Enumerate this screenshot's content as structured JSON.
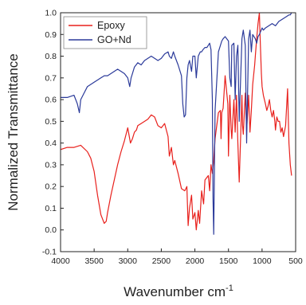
{
  "chart_data": {
    "type": "line",
    "title": "",
    "xlabel": "Wavenumber cm",
    "xlabel_superscript": "-1",
    "ylabel": "Normalized Transmittance",
    "xlim": [
      4000,
      500
    ],
    "ylim": [
      -0.1,
      1.0
    ],
    "x_reversed": true,
    "x_ticks": [
      4000,
      3500,
      3000,
      2500,
      2000,
      1500,
      1000,
      500
    ],
    "y_ticks": [
      -0.1,
      0.0,
      0.1,
      0.2,
      0.3,
      0.4,
      0.5,
      0.6,
      0.7,
      0.8,
      0.9,
      1.0
    ],
    "x_tick_labels": [
      "4000",
      "3500",
      "3000",
      "2500",
      "2000",
      "1500",
      "1000",
      "500"
    ],
    "y_tick_labels": [
      "-0.1",
      "0.0",
      "0.1",
      "0.2",
      "0.3",
      "0.4",
      "0.5",
      "0.6",
      "0.7",
      "0.8",
      "0.9",
      "1.0"
    ],
    "grid": false,
    "legend_position": "top-left",
    "series": [
      {
        "name": "Epoxy",
        "color": "#e8201c",
        "x": [
          4000,
          3900,
          3800,
          3700,
          3600,
          3550,
          3500,
          3450,
          3400,
          3350,
          3320,
          3300,
          3250,
          3200,
          3150,
          3100,
          3050,
          3000,
          2960,
          2930,
          2900,
          2870,
          2850,
          2800,
          2750,
          2700,
          2650,
          2600,
          2550,
          2500,
          2450,
          2400,
          2380,
          2350,
          2320,
          2300,
          2250,
          2200,
          2150,
          2120,
          2100,
          2080,
          2050,
          2030,
          2000,
          1980,
          1950,
          1930,
          1900,
          1870,
          1850,
          1800,
          1780,
          1760,
          1740,
          1720,
          1700,
          1650,
          1620,
          1610,
          1600,
          1580,
          1550,
          1510,
          1500,
          1480,
          1460,
          1450,
          1420,
          1400,
          1380,
          1360,
          1340,
          1300,
          1290,
          1280,
          1250,
          1230,
          1200,
          1180,
          1160,
          1140,
          1110,
          1100,
          1080,
          1060,
          1040,
          1030,
          1010,
          1000,
          980,
          950,
          930,
          910,
          890,
          870,
          850,
          830,
          810,
          800,
          780,
          760,
          740,
          720,
          700,
          680,
          650,
          620,
          600,
          580,
          560
        ],
        "y": [
          0.37,
          0.38,
          0.38,
          0.39,
          0.36,
          0.33,
          0.27,
          0.16,
          0.07,
          0.03,
          0.04,
          0.08,
          0.16,
          0.23,
          0.3,
          0.36,
          0.41,
          0.47,
          0.4,
          0.42,
          0.45,
          0.46,
          0.48,
          0.49,
          0.5,
          0.51,
          0.53,
          0.52,
          0.48,
          0.47,
          0.49,
          0.43,
          0.34,
          0.38,
          0.3,
          0.32,
          0.26,
          0.19,
          0.18,
          0.2,
          0.02,
          0.1,
          0.16,
          0.05,
          0.08,
          0.0,
          0.09,
          0.03,
          0.18,
          0.12,
          0.23,
          0.25,
          0.18,
          0.3,
          0.26,
          0.32,
          0.42,
          0.54,
          0.55,
          0.42,
          0.54,
          0.56,
          0.71,
          0.58,
          0.34,
          0.62,
          0.46,
          0.42,
          0.6,
          0.45,
          0.62,
          0.4,
          0.22,
          0.62,
          0.48,
          0.44,
          0.63,
          0.46,
          0.62,
          0.45,
          0.55,
          0.67,
          0.76,
          0.8,
          0.88,
          0.95,
          1.0,
          0.9,
          0.72,
          0.66,
          0.62,
          0.58,
          0.55,
          0.57,
          0.6,
          0.55,
          0.52,
          0.55,
          0.5,
          0.46,
          0.52,
          0.5,
          0.5,
          0.45,
          0.47,
          0.43,
          0.48,
          0.65,
          0.4,
          0.3,
          0.25
        ]
      },
      {
        "name": "GO+Nd",
        "color": "#2b3a9a",
        "x": [
          4000,
          3900,
          3800,
          3750,
          3720,
          3700,
          3650,
          3600,
          3550,
          3500,
          3450,
          3400,
          3350,
          3300,
          3250,
          3200,
          3150,
          3100,
          3050,
          3000,
          2970,
          2950,
          2930,
          2900,
          2850,
          2800,
          2750,
          2700,
          2650,
          2600,
          2550,
          2500,
          2450,
          2400,
          2380,
          2350,
          2320,
          2300,
          2250,
          2200,
          2180,
          2160,
          2140,
          2120,
          2100,
          2080,
          2050,
          2030,
          2000,
          1980,
          1950,
          1920,
          1900,
          1880,
          1850,
          1820,
          1800,
          1780,
          1760,
          1740,
          1730,
          1720,
          1700,
          1650,
          1600,
          1580,
          1550,
          1500,
          1480,
          1460,
          1450,
          1420,
          1400,
          1380,
          1360,
          1340,
          1300,
          1280,
          1250,
          1230,
          1200,
          1180,
          1160,
          1140,
          1100,
          1080,
          1060,
          1040,
          1000,
          980,
          950,
          900,
          850,
          800,
          750,
          700,
          650,
          600,
          580,
          560
        ],
        "y": [
          0.61,
          0.61,
          0.62,
          0.58,
          0.54,
          0.6,
          0.63,
          0.66,
          0.67,
          0.68,
          0.69,
          0.7,
          0.71,
          0.71,
          0.72,
          0.73,
          0.74,
          0.73,
          0.72,
          0.7,
          0.66,
          0.7,
          0.72,
          0.75,
          0.77,
          0.76,
          0.78,
          0.79,
          0.8,
          0.79,
          0.78,
          0.79,
          0.81,
          0.82,
          0.8,
          0.79,
          0.82,
          0.8,
          0.76,
          0.71,
          0.58,
          0.52,
          0.53,
          0.7,
          0.76,
          0.78,
          0.73,
          0.8,
          0.8,
          0.7,
          0.8,
          0.82,
          0.82,
          0.83,
          0.84,
          0.84,
          0.85,
          0.86,
          0.83,
          0.6,
          0.15,
          -0.02,
          0.55,
          0.82,
          0.87,
          0.88,
          0.89,
          0.87,
          0.7,
          0.66,
          0.85,
          0.86,
          0.6,
          0.8,
          0.85,
          0.5,
          0.88,
          0.92,
          0.85,
          0.4,
          0.88,
          0.92,
          0.82,
          0.9,
          0.88,
          0.86,
          0.89,
          0.9,
          0.93,
          0.92,
          0.93,
          0.94,
          0.95,
          0.94,
          0.96,
          0.97,
          0.98,
          0.99,
          0.99,
          1.0
        ]
      }
    ]
  }
}
